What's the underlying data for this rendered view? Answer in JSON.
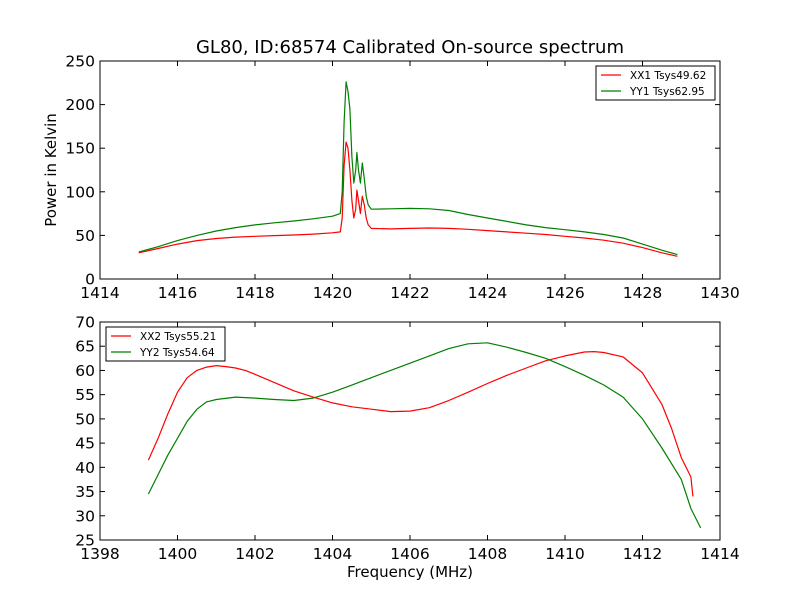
{
  "chart_data": [
    {
      "type": "line",
      "title": "GL80, ID:68574 Calibrated On-source spectrum",
      "xlabel": "",
      "ylabel": "Power in Kelvin",
      "xlim": [
        1414,
        1430
      ],
      "ylim": [
        0,
        250
      ],
      "xticks": [
        1414,
        1416,
        1418,
        1420,
        1422,
        1424,
        1426,
        1428,
        1430
      ],
      "yticks": [
        0,
        50,
        100,
        150,
        200,
        250
      ],
      "grid": false,
      "legend_position": "top-right",
      "series": [
        {
          "name": "XX1 Tsys49.62",
          "color": "#ff0000",
          "points": [
            [
              1415.0,
              30
            ],
            [
              1415.5,
              35
            ],
            [
              1416.0,
              40
            ],
            [
              1416.5,
              44
            ],
            [
              1417.0,
              46.5
            ],
            [
              1417.5,
              48
            ],
            [
              1418.0,
              49
            ],
            [
              1418.5,
              49.8
            ],
            [
              1419.0,
              50.5
            ],
            [
              1419.5,
              51.5
            ],
            [
              1420.0,
              53
            ],
            [
              1420.2,
              54
            ],
            [
              1420.25,
              70
            ],
            [
              1420.3,
              130
            ],
            [
              1420.35,
              157
            ],
            [
              1420.4,
              150
            ],
            [
              1420.45,
              125
            ],
            [
              1420.5,
              90
            ],
            [
              1420.55,
              70
            ],
            [
              1420.6,
              80
            ],
            [
              1420.63,
              102
            ],
            [
              1420.67,
              90
            ],
            [
              1420.72,
              75
            ],
            [
              1420.77,
              95
            ],
            [
              1420.82,
              85
            ],
            [
              1420.87,
              70
            ],
            [
              1420.92,
              62
            ],
            [
              1421.0,
              58
            ],
            [
              1421.5,
              57.5
            ],
            [
              1422.0,
              58
            ],
            [
              1422.5,
              58.5
            ],
            [
              1423.0,
              58
            ],
            [
              1423.5,
              57
            ],
            [
              1424.0,
              55.5
            ],
            [
              1424.5,
              54
            ],
            [
              1425.0,
              52.5
            ],
            [
              1425.5,
              51
            ],
            [
              1426.0,
              49
            ],
            [
              1426.5,
              47
            ],
            [
              1427.0,
              44.5
            ],
            [
              1427.5,
              41
            ],
            [
              1428.0,
              36
            ],
            [
              1428.5,
              30
            ],
            [
              1428.9,
              26
            ]
          ]
        },
        {
          "name": "YY1 Tsys62.95",
          "color": "#008000",
          "points": [
            [
              1415.0,
              31
            ],
            [
              1415.5,
              37
            ],
            [
              1416.0,
              44
            ],
            [
              1416.5,
              50
            ],
            [
              1417.0,
              55
            ],
            [
              1417.5,
              59
            ],
            [
              1418.0,
              62
            ],
            [
              1418.5,
              64.5
            ],
            [
              1419.0,
              66.5
            ],
            [
              1419.5,
              69
            ],
            [
              1420.0,
              72
            ],
            [
              1420.2,
              75
            ],
            [
              1420.25,
              100
            ],
            [
              1420.3,
              180
            ],
            [
              1420.35,
              226
            ],
            [
              1420.4,
              215
            ],
            [
              1420.45,
              195
            ],
            [
              1420.5,
              140
            ],
            [
              1420.55,
              110
            ],
            [
              1420.6,
              125
            ],
            [
              1420.63,
              145
            ],
            [
              1420.67,
              125
            ],
            [
              1420.72,
              110
            ],
            [
              1420.77,
              133
            ],
            [
              1420.82,
              115
            ],
            [
              1420.87,
              95
            ],
            [
              1420.92,
              85
            ],
            [
              1421.0,
              80
            ],
            [
              1421.5,
              80.5
            ],
            [
              1422.0,
              81
            ],
            [
              1422.5,
              80.5
            ],
            [
              1423.0,
              78.5
            ],
            [
              1423.5,
              74
            ],
            [
              1424.0,
              70
            ],
            [
              1424.5,
              66
            ],
            [
              1425.0,
              62
            ],
            [
              1425.5,
              59
            ],
            [
              1426.0,
              56.5
            ],
            [
              1426.5,
              54
            ],
            [
              1427.0,
              51
            ],
            [
              1427.5,
              47
            ],
            [
              1428.0,
              40
            ],
            [
              1428.5,
              33
            ],
            [
              1428.9,
              28
            ]
          ]
        }
      ]
    },
    {
      "type": "line",
      "title": "",
      "xlabel": "Frequency (MHz)",
      "ylabel": "",
      "xlim": [
        1398,
        1414
      ],
      "ylim": [
        25,
        70
      ],
      "xticks": [
        1398,
        1400,
        1402,
        1404,
        1406,
        1408,
        1410,
        1412,
        1414
      ],
      "yticks": [
        25,
        30,
        35,
        40,
        45,
        50,
        55,
        60,
        65,
        70
      ],
      "grid": false,
      "legend_position": "top-left",
      "series": [
        {
          "name": "XX2 Tsys55.21",
          "color": "#ff0000",
          "points": [
            [
              1399.25,
              41.5
            ],
            [
              1399.5,
              46
            ],
            [
              1399.75,
              51
            ],
            [
              1400.0,
              55.5
            ],
            [
              1400.25,
              58.5
            ],
            [
              1400.5,
              60
            ],
            [
              1400.75,
              60.7
            ],
            [
              1401.0,
              61
            ],
            [
              1401.25,
              60.8
            ],
            [
              1401.5,
              60.5
            ],
            [
              1401.75,
              60
            ],
            [
              1402.0,
              59.2
            ],
            [
              1402.5,
              57.5
            ],
            [
              1403.0,
              55.8
            ],
            [
              1403.5,
              54.5
            ],
            [
              1404.0,
              53.3
            ],
            [
              1404.5,
              52.5
            ],
            [
              1405.0,
              52
            ],
            [
              1405.5,
              51.5
            ],
            [
              1406.0,
              51.6
            ],
            [
              1406.5,
              52.3
            ],
            [
              1407.0,
              53.8
            ],
            [
              1407.5,
              55.5
            ],
            [
              1408.0,
              57.3
            ],
            [
              1408.5,
              59
            ],
            [
              1409.0,
              60.5
            ],
            [
              1409.5,
              62
            ],
            [
              1410.0,
              63
            ],
            [
              1410.5,
              63.8
            ],
            [
              1410.75,
              63.9
            ],
            [
              1411.0,
              63.7
            ],
            [
              1411.5,
              62.8
            ],
            [
              1412.0,
              59.5
            ],
            [
              1412.5,
              53
            ],
            [
              1412.75,
              48
            ],
            [
              1413.0,
              42
            ],
            [
              1413.25,
              38
            ],
            [
              1413.3,
              34
            ]
          ]
        },
        {
          "name": "YY2 Tsys54.64",
          "color": "#008000",
          "points": [
            [
              1399.25,
              34.5
            ],
            [
              1399.5,
              38.5
            ],
            [
              1399.75,
              42.5
            ],
            [
              1400.0,
              46
            ],
            [
              1400.25,
              49.5
            ],
            [
              1400.5,
              52
            ],
            [
              1400.75,
              53.5
            ],
            [
              1401.0,
              54
            ],
            [
              1401.5,
              54.5
            ],
            [
              1402.0,
              54.3
            ],
            [
              1402.5,
              54
            ],
            [
              1403.0,
              53.8
            ],
            [
              1403.5,
              54.3
            ],
            [
              1404.0,
              55.5
            ],
            [
              1404.5,
              57
            ],
            [
              1405.0,
              58.5
            ],
            [
              1405.5,
              60
            ],
            [
              1406.0,
              61.5
            ],
            [
              1406.5,
              63
            ],
            [
              1407.0,
              64.5
            ],
            [
              1407.5,
              65.5
            ],
            [
              1408.0,
              65.7
            ],
            [
              1408.5,
              64.8
            ],
            [
              1409.0,
              63.7
            ],
            [
              1409.5,
              62.5
            ],
            [
              1410.0,
              60.8
            ],
            [
              1410.5,
              59
            ],
            [
              1411.0,
              57
            ],
            [
              1411.5,
              54.5
            ],
            [
              1412.0,
              50
            ],
            [
              1412.5,
              44
            ],
            [
              1413.0,
              37.5
            ],
            [
              1413.25,
              31.5
            ],
            [
              1413.5,
              27.5
            ]
          ]
        }
      ]
    }
  ]
}
